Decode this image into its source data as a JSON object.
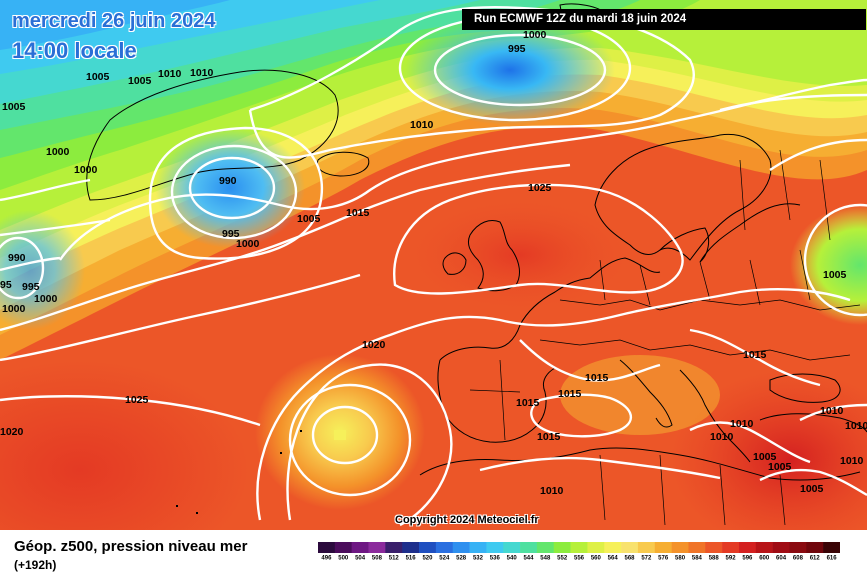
{
  "header": {
    "date_line": "mercredi 26 juin 2024",
    "time_line": "14:00 locale",
    "run_info": "Run ECMWF 12Z du mardi 18 juin 2024"
  },
  "footer": {
    "product": "Géop. z500, pression niveau mer",
    "lead_time": "(+192h)",
    "copyright": "Copyright 2024 Meteociel.fr"
  },
  "isobar_labels": [
    "1005",
    "1005",
    "1010",
    "1010",
    "1005",
    "1000",
    "1000",
    "990",
    "995",
    "1000",
    "1000",
    "990",
    "95",
    "995",
    "1000",
    "1010",
    "1005",
    "1015",
    "1025",
    "1020",
    "1025",
    "1020",
    "1015",
    "1015",
    "1015",
    "1015",
    "1010",
    "1015",
    "1010",
    "1010",
    "1010",
    "1005",
    "1005",
    "1005",
    "1010",
    "1010",
    "1000",
    "995"
  ],
  "colorbar": {
    "labels": [
      "496",
      "500",
      "504",
      "508",
      "512",
      "516",
      "520",
      "524",
      "528",
      "532",
      "536",
      "540",
      "544",
      "548",
      "552",
      "556",
      "560",
      "564",
      "568",
      "572",
      "576",
      "580",
      "584",
      "588",
      "592",
      "596",
      "600",
      "604",
      "608",
      "612",
      "616"
    ],
    "colors": [
      "#2b0a3d",
      "#4b0c5c",
      "#6e1783",
      "#8b2a9c",
      "#3a1f6b",
      "#1e2f8c",
      "#1f4fc0",
      "#2a6fe0",
      "#2f90ef",
      "#37b2f5",
      "#3fcaf0",
      "#45d8d0",
      "#4fe0a0",
      "#63e66c",
      "#8cec3e",
      "#b6f03a",
      "#def046",
      "#f6f05a",
      "#f8e26e",
      "#f8ca4e",
      "#f6ae32",
      "#f4922a",
      "#f07428",
      "#ec5628",
      "#e43a24",
      "#d42020",
      "#b81418",
      "#a00c14",
      "#8a0a10",
      "#70060c",
      "#3a0406"
    ]
  },
  "colors": {
    "isobar": "#ffffff",
    "coast": "#000000",
    "banner": "#000000",
    "date_text": "#2a6fd6"
  }
}
